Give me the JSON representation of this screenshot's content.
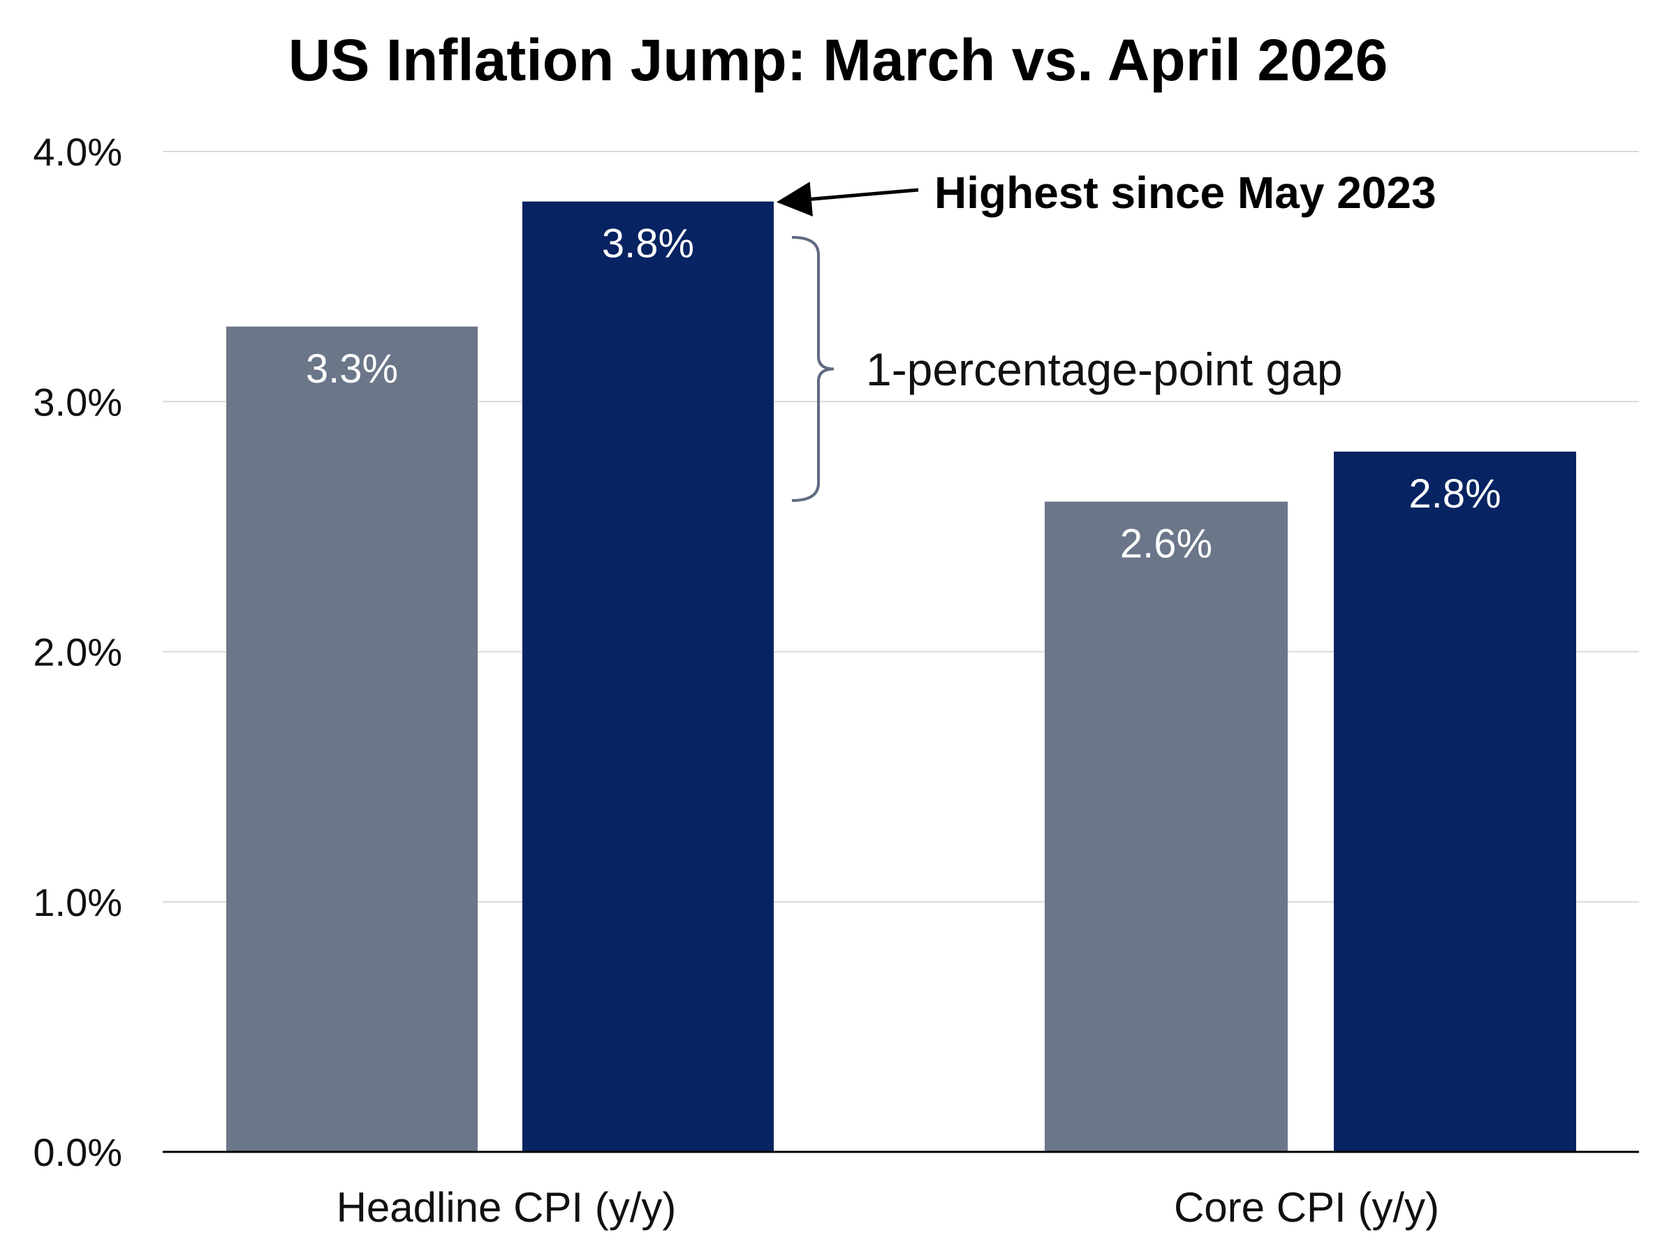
{
  "chart_data": {
    "type": "bar",
    "title": "US Inflation Jump: March vs. April 2026",
    "xlabel": "",
    "ylabel": "",
    "categories": [
      "Headline CPI (y/y)",
      "Core CPI (y/y)"
    ],
    "series": [
      {
        "key": "march",
        "values": [
          3.3,
          2.6
        ],
        "color": "#6b7689"
      },
      {
        "key": "april",
        "values": [
          3.8,
          2.8
        ],
        "color": "#072361"
      }
    ],
    "value_labels": [
      [
        "3.3%",
        "2.6%"
      ],
      [
        "3.8%",
        "2.8%"
      ]
    ],
    "ylim": [
      0,
      4
    ],
    "yticks": [
      0,
      1,
      2,
      3,
      4
    ],
    "ytick_labels": [
      "0.0%",
      "1.0%",
      "2.0%",
      "3.0%",
      "4.0%"
    ],
    "grid": true,
    "legend": "none",
    "colors": {
      "grid": "#d9d9d9",
      "axis": "#000000",
      "bracket": "#5e6b80"
    },
    "annotations": {
      "highest": "Highest since May 2023",
      "gap": "1-percentage-point gap"
    }
  }
}
